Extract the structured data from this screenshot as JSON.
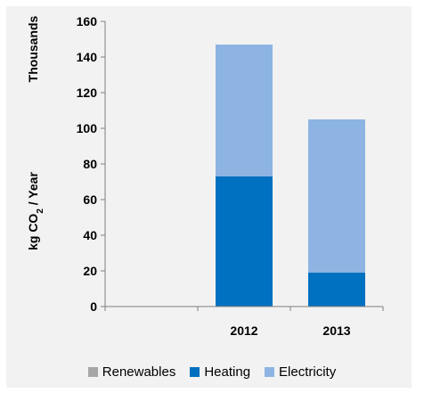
{
  "chart_data": {
    "type": "bar",
    "stacked": true,
    "categories": [
      "",
      "2012",
      "2013"
    ],
    "series": [
      {
        "name": "Renewables",
        "color": "#a6a6a6",
        "values": [
          0,
          0,
          0
        ]
      },
      {
        "name": "Heating",
        "color": "#0070c0",
        "values": [
          0,
          73,
          19
        ]
      },
      {
        "name": "Electricity",
        "color": "#8db4e2",
        "values": [
          0,
          74,
          86
        ]
      }
    ],
    "ylim": [
      0,
      160
    ],
    "yticks": [
      "0",
      "20",
      "40",
      "60",
      "80",
      "100",
      "120",
      "140",
      "160"
    ],
    "ylabel_units": "Thousands",
    "ylabel_main": "kg CO",
    "ylabel_sub": "2",
    "ylabel_tail": " / Year",
    "legend_position": "bottom",
    "grid": false
  }
}
